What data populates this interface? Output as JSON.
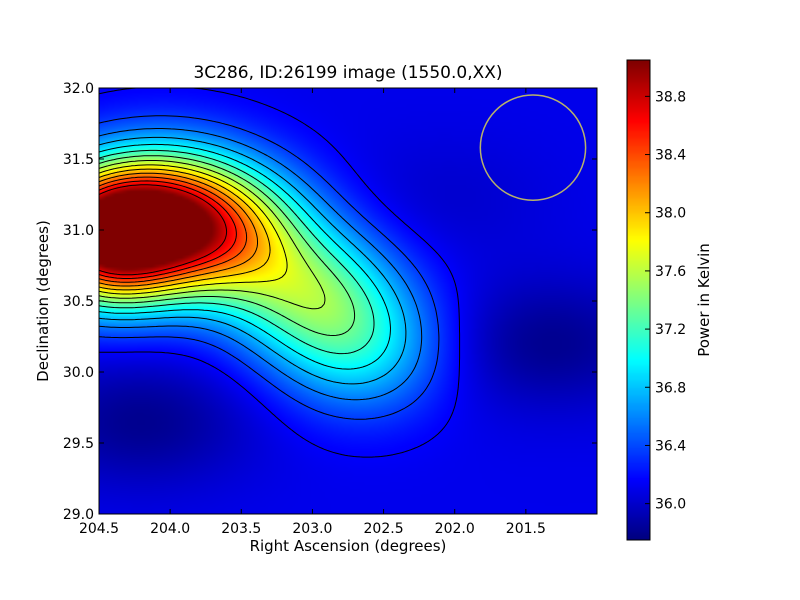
{
  "chart_data": {
    "type": "heatmap",
    "title": "3C286, ID:26199 image (1550.0,XX)",
    "xlabel": "Right Ascension (degrees)",
    "ylabel": "Declination (degrees)",
    "xlim": [
      204.5,
      201.0
    ],
    "ylim": [
      29.0,
      32.0
    ],
    "x_ticks": [
      204.5,
      204.0,
      203.5,
      203.0,
      202.5,
      202.0,
      201.5
    ],
    "x_tick_labels": [
      "204.5",
      "204.0",
      "203.5",
      "203.0",
      "202.5",
      "202.0",
      "201.5"
    ],
    "y_ticks": [
      29.0,
      29.5,
      30.0,
      30.5,
      31.0,
      31.5,
      32.0
    ],
    "y_tick_labels": [
      "29.0",
      "29.5",
      "30.0",
      "30.5",
      "31.0",
      "31.5",
      "32.0"
    ],
    "colorbar": {
      "label": "Power in Kelvin",
      "range": [
        35.75,
        39.05
      ],
      "ticks": [
        36.0,
        36.4,
        36.8,
        37.2,
        37.6,
        38.0,
        38.4,
        38.8
      ],
      "tick_labels": [
        "36.0",
        "36.4",
        "36.8",
        "37.2",
        "37.6",
        "38.0",
        "38.4",
        "38.8"
      ],
      "colormap": "jet"
    },
    "features": [
      {
        "kind": "peak",
        "ra": 204.45,
        "dec": 30.95,
        "value": 38.9
      },
      {
        "kind": "ridge",
        "ra": 204.0,
        "dec": 31.1,
        "value": 37.9
      },
      {
        "kind": "ridge",
        "ra": 203.55,
        "dec": 30.95,
        "value": 37.3
      },
      {
        "kind": "ridge",
        "ra": 203.0,
        "dec": 30.55,
        "value": 37.1
      },
      {
        "kind": "ridge",
        "ra": 202.65,
        "dec": 30.15,
        "value": 36.8
      },
      {
        "kind": "minimum",
        "ra": 204.2,
        "dec": 29.65,
        "value": 35.8
      },
      {
        "kind": "minimum",
        "ra": 201.35,
        "dec": 30.2,
        "value": 35.8
      },
      {
        "kind": "minimum",
        "ra": 202.1,
        "dec": 31.2,
        "value": 36.0
      },
      {
        "kind": "background",
        "value": 36.1
      }
    ],
    "beam_circle": {
      "ra": 201.45,
      "dec": 31.58,
      "radius_deg": 0.37,
      "color": "#b8b26a"
    },
    "contours": "black contour lines"
  }
}
